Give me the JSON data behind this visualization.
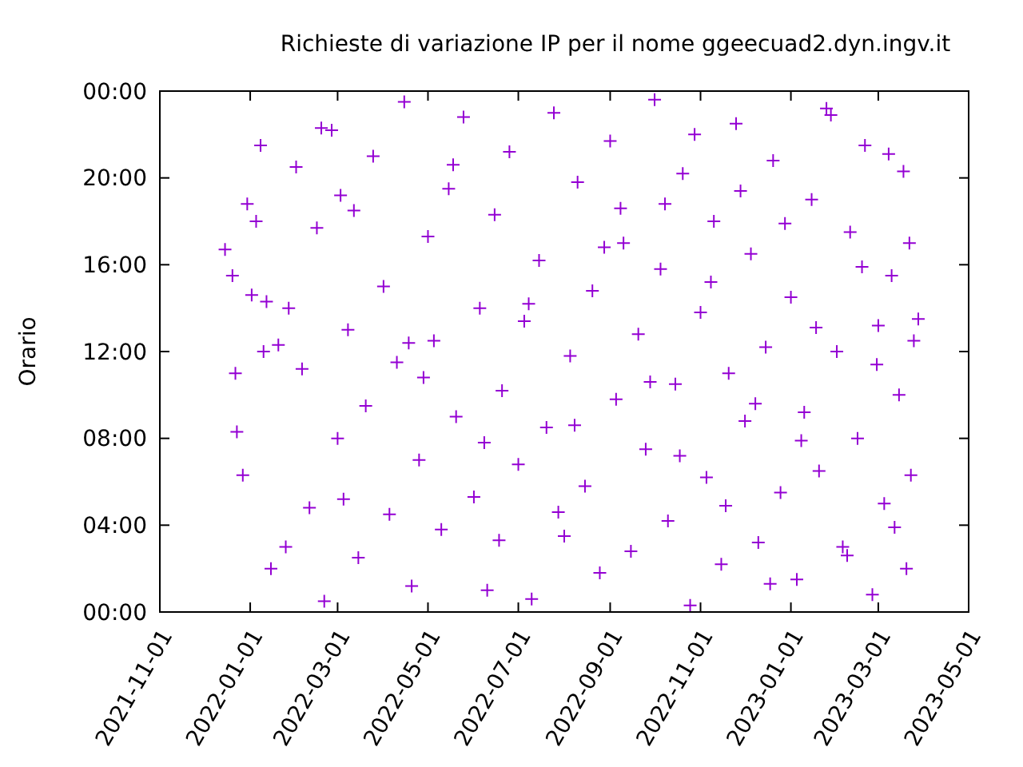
{
  "chart_data": {
    "type": "scatter",
    "title": "Richieste di variazione IP per il nome ggeecuad2.dyn.ingv.it",
    "ylabel": "Orario",
    "xlim": [
      "2021-11-01",
      "2023-05-01"
    ],
    "xticks": [
      "2021-11-01",
      "2022-01-01",
      "2022-03-01",
      "2022-05-01",
      "2022-07-01",
      "2022-09-01",
      "2022-11-01",
      "2023-01-01",
      "2023-03-01",
      "2023-05-01"
    ],
    "ylim": [
      0,
      24
    ],
    "yticks": [
      {
        "value": 0,
        "label": "00:00"
      },
      {
        "value": 4,
        "label": "04:00"
      },
      {
        "value": 8,
        "label": "08:00"
      },
      {
        "value": 12,
        "label": "12:00"
      },
      {
        "value": 16,
        "label": "16:00"
      },
      {
        "value": 20,
        "label": "20:00"
      },
      {
        "value": 24,
        "label": "00:00"
      }
    ],
    "marker": "cross",
    "grid": false,
    "series": [
      {
        "color": "#9400d3",
        "x": [
          "2021-12-15",
          "2021-12-20",
          "2021-12-22",
          "2021-12-23",
          "2021-12-27",
          "2021-12-30",
          "2022-01-02",
          "2022-01-05",
          "2022-01-08",
          "2022-01-10",
          "2022-01-15",
          "2022-01-20",
          "2022-01-25",
          "2022-01-27",
          "2022-02-01",
          "2022-02-05",
          "2022-02-10",
          "2022-02-15",
          "2022-02-20",
          "2022-02-25",
          "2022-03-01",
          "2022-03-05",
          "2022-03-08",
          "2022-03-12",
          "2022-03-15",
          "2022-03-20",
          "2022-03-25",
          "2022-04-01",
          "2022-04-05",
          "2022-04-10",
          "2022-04-15",
          "2022-04-20",
          "2022-04-25",
          "2022-05-01",
          "2022-05-05",
          "2022-05-10",
          "2022-05-15",
          "2022-05-20",
          "2022-05-25",
          "2022-06-01",
          "2022-06-05",
          "2022-06-10",
          "2022-06-15",
          "2022-06-20",
          "2022-06-25",
          "2022-07-01",
          "2022-07-05",
          "2022-07-10",
          "2022-07-15",
          "2022-07-20",
          "2022-07-25",
          "2022-08-01",
          "2022-08-05",
          "2022-08-10",
          "2022-08-15",
          "2022-08-20",
          "2022-08-25",
          "2022-09-01",
          "2022-09-05",
          "2022-09-10",
          "2022-09-15",
          "2022-09-20",
          "2022-09-25",
          "2022-10-01",
          "2022-10-05",
          "2022-10-10",
          "2022-10-15",
          "2022-10-20",
          "2022-10-25",
          "2022-11-01",
          "2022-11-05",
          "2022-11-10",
          "2022-11-15",
          "2022-11-20",
          "2022-11-25",
          "2022-12-01",
          "2022-12-05",
          "2022-12-10",
          "2022-12-15",
          "2022-12-20",
          "2022-12-25",
          "2023-01-01",
          "2023-01-05",
          "2023-01-10",
          "2023-01-15",
          "2023-01-20",
          "2023-01-25",
          "2023-02-01",
          "2023-02-05",
          "2023-02-10",
          "2023-02-15",
          "2023-02-20",
          "2023-02-25",
          "2023-03-01",
          "2023-03-05",
          "2023-03-10",
          "2023-03-15",
          "2023-03-20",
          "2023-03-22",
          "2023-03-25",
          "2023-03-23",
          "2023-03-18",
          "2023-03-28",
          "2022-03-03",
          "2022-04-28",
          "2022-06-08",
          "2022-07-28",
          "2022-08-28",
          "2022-09-28",
          "2022-10-08",
          "2022-10-18",
          "2022-10-28",
          "2022-11-08",
          "2022-11-18",
          "2022-11-28",
          "2022-12-08",
          "2022-12-18",
          "2022-12-28",
          "2023-01-08",
          "2023-01-18",
          "2023-01-28",
          "2023-02-08",
          "2023-02-18",
          "2023-02-28",
          "2023-03-08",
          "2023-03-12",
          "2022-09-08",
          "2022-08-08",
          "2022-07-08",
          "2022-06-18",
          "2022-05-18",
          "2022-04-18",
          "2022-02-18",
          "2022-01-12"
        ],
        "values": [
          16.7,
          15.5,
          11,
          8.3,
          6.3,
          18.8,
          14.6,
          18,
          21.5,
          12,
          2,
          12.3,
          3,
          14,
          20.5,
          11.2,
          4.8,
          17.7,
          0.5,
          22.2,
          8,
          5.2,
          13,
          18.5,
          2.5,
          9.5,
          21,
          15,
          4.5,
          11.5,
          23.5,
          1.2,
          7,
          17.3,
          12.5,
          3.8,
          19.5,
          9,
          22.8,
          5.3,
          14,
          1,
          18.3,
          10.2,
          21.2,
          6.8,
          13.4,
          0.6,
          16.2,
          8.5,
          23,
          3.5,
          11.8,
          19.8,
          5.8,
          14.8,
          1.8,
          21.7,
          9.8,
          17,
          2.8,
          12.8,
          7.5,
          23.6,
          15.8,
          4.2,
          10.5,
          20.2,
          0.3,
          13.8,
          6.2,
          18,
          2.2,
          11,
          22.5,
          8.8,
          16.5,
          3.2,
          12.2,
          20.8,
          5.5,
          14.5,
          1.5,
          9.2,
          19,
          6.5,
          23.2,
          12,
          3,
          17.5,
          8,
          21.5,
          0.8,
          13.2,
          5,
          15.5,
          10,
          2,
          17,
          12.5,
          6.3,
          20.3,
          13.5,
          19.2,
          10.8,
          7.8,
          4.6,
          16.8,
          10.6,
          18.8,
          7.2,
          22,
          15.2,
          4.9,
          19.4,
          9.6,
          1.3,
          17.9,
          7.9,
          13.1,
          22.9,
          2.6,
          15.9,
          11.4,
          21.1,
          3.9,
          18.6,
          8.6,
          14.2,
          3.3,
          20.6,
          12.4,
          22.3,
          14.3
        ]
      }
    ]
  }
}
